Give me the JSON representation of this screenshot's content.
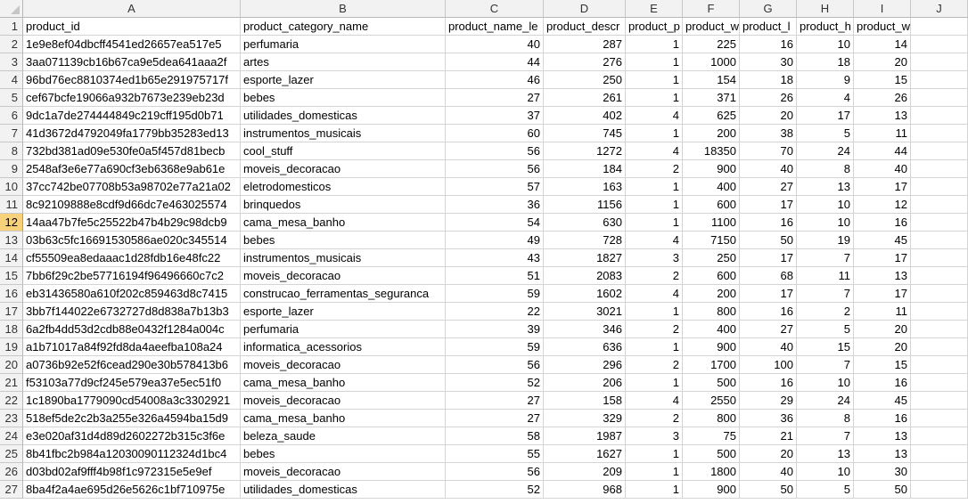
{
  "spreadsheet": {
    "columns": [
      "A",
      "B",
      "C",
      "D",
      "E",
      "F",
      "G",
      "H",
      "I",
      "J"
    ],
    "selected_row": 12,
    "header_row": [
      "product_id",
      "product_category_name",
      "product_name_le",
      "product_descr",
      "product_p",
      "product_w",
      "product_l",
      "product_h",
      "product_width_cm",
      ""
    ],
    "rows": [
      [
        "1e9e8ef04dbcff4541ed26657ea517e5",
        "perfumaria",
        "40",
        "287",
        "1",
        "225",
        "16",
        "10",
        "14",
        ""
      ],
      [
        "3aa071139cb16b67ca9e5dea641aaa2f",
        "artes",
        "44",
        "276",
        "1",
        "1000",
        "30",
        "18",
        "20",
        ""
      ],
      [
        "96bd76ec8810374ed1b65e291975717f",
        "esporte_lazer",
        "46",
        "250",
        "1",
        "154",
        "18",
        "9",
        "15",
        ""
      ],
      [
        "cef67bcfe19066a932b7673e239eb23d",
        "bebes",
        "27",
        "261",
        "1",
        "371",
        "26",
        "4",
        "26",
        ""
      ],
      [
        "9dc1a7de274444849c219cff195d0b71",
        "utilidades_domesticas",
        "37",
        "402",
        "4",
        "625",
        "20",
        "17",
        "13",
        ""
      ],
      [
        "41d3672d4792049fa1779bb35283ed13",
        "instrumentos_musicais",
        "60",
        "745",
        "1",
        "200",
        "38",
        "5",
        "11",
        ""
      ],
      [
        "732bd381ad09e530fe0a5f457d81becb",
        "cool_stuff",
        "56",
        "1272",
        "4",
        "18350",
        "70",
        "24",
        "44",
        ""
      ],
      [
        "2548af3e6e77a690cf3eb6368e9ab61e",
        "moveis_decoracao",
        "56",
        "184",
        "2",
        "900",
        "40",
        "8",
        "40",
        ""
      ],
      [
        "37cc742be07708b53a98702e77a21a02",
        "eletrodomesticos",
        "57",
        "163",
        "1",
        "400",
        "27",
        "13",
        "17",
        ""
      ],
      [
        "8c92109888e8cdf9d66dc7e463025574",
        "brinquedos",
        "36",
        "1156",
        "1",
        "600",
        "17",
        "10",
        "12",
        ""
      ],
      [
        "14aa47b7fe5c25522b47b4b29c98dcb9",
        "cama_mesa_banho",
        "54",
        "630",
        "1",
        "1100",
        "16",
        "10",
        "16",
        ""
      ],
      [
        "03b63c5fc16691530586ae020c345514",
        "bebes",
        "49",
        "728",
        "4",
        "7150",
        "50",
        "19",
        "45",
        ""
      ],
      [
        "cf55509ea8edaaac1d28fdb16e48fc22",
        "instrumentos_musicais",
        "43",
        "1827",
        "3",
        "250",
        "17",
        "7",
        "17",
        ""
      ],
      [
        "7bb6f29c2be57716194f96496660c7c2",
        "moveis_decoracao",
        "51",
        "2083",
        "2",
        "600",
        "68",
        "11",
        "13",
        ""
      ],
      [
        "eb31436580a610f202c859463d8c7415",
        "construcao_ferramentas_seguranca",
        "59",
        "1602",
        "4",
        "200",
        "17",
        "7",
        "17",
        ""
      ],
      [
        "3bb7f144022e6732727d8d838a7b13b3",
        "esporte_lazer",
        "22",
        "3021",
        "1",
        "800",
        "16",
        "2",
        "11",
        ""
      ],
      [
        "6a2fb4dd53d2cdb88e0432f1284a004c",
        "perfumaria",
        "39",
        "346",
        "2",
        "400",
        "27",
        "5",
        "20",
        ""
      ],
      [
        "a1b71017a84f92fd8da4aeefba108a24",
        "informatica_acessorios",
        "59",
        "636",
        "1",
        "900",
        "40",
        "15",
        "20",
        ""
      ],
      [
        "a0736b92e52f6cead290e30b578413b6",
        "moveis_decoracao",
        "56",
        "296",
        "2",
        "1700",
        "100",
        "7",
        "15",
        ""
      ],
      [
        "f53103a77d9cf245e579ea37e5ec51f0",
        "cama_mesa_banho",
        "52",
        "206",
        "1",
        "500",
        "16",
        "10",
        "16",
        ""
      ],
      [
        "1c1890ba1779090cd54008a3c3302921",
        "moveis_decoracao",
        "27",
        "158",
        "4",
        "2550",
        "29",
        "24",
        "45",
        ""
      ],
      [
        "518ef5de2c2b3a255e326a4594ba15d9",
        "cama_mesa_banho",
        "27",
        "329",
        "2",
        "800",
        "36",
        "8",
        "16",
        ""
      ],
      [
        "e3e020af31d4d89d2602272b315c3f6e",
        "beleza_saude",
        "58",
        "1987",
        "3",
        "75",
        "21",
        "7",
        "13",
        ""
      ],
      [
        "8b41fbc2b984a12030090112324d1bc4",
        "bebes",
        "55",
        "1627",
        "1",
        "500",
        "20",
        "13",
        "13",
        ""
      ],
      [
        "d03bd02af9fff4b98f1c972315e5e9ef",
        "moveis_decoracao",
        "56",
        "209",
        "1",
        "1800",
        "40",
        "10",
        "30",
        ""
      ],
      [
        "8ba4f2a4ae695d26e5626c1bf710975e",
        "utilidades_domesticas",
        "52",
        "968",
        "1",
        "900",
        "50",
        "5",
        "50",
        ""
      ]
    ]
  }
}
